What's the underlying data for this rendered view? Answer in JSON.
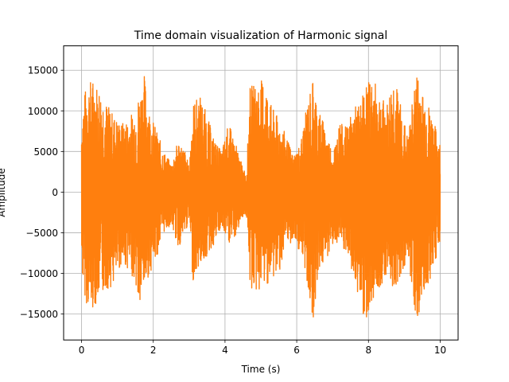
{
  "chart_data": {
    "type": "line",
    "title": "Time domain visualization of Harmonic signal",
    "xlabel": "Time (s)",
    "ylabel": "Amplitude",
    "xlim": [
      -0.5,
      10.5
    ],
    "ylim": [
      -18200,
      18000
    ],
    "grid": true,
    "xticks": [
      0,
      2,
      4,
      6,
      8,
      10
    ],
    "xtick_labels": [
      "0",
      "2",
      "4",
      "6",
      "8",
      "10"
    ],
    "yticks": [
      -15000,
      -10000,
      -5000,
      0,
      5000,
      10000,
      15000
    ],
    "ytick_labels": [
      "−15000",
      "−10000",
      "−5000",
      "0",
      "5000",
      "10000",
      "15000"
    ],
    "series": [
      {
        "color": "#ff7f0e",
        "envelope": {
          "t": [
            0.0,
            0.05,
            0.15,
            0.3,
            0.5,
            0.7,
            0.9,
            1.1,
            1.3,
            1.5,
            1.6,
            1.75,
            1.9,
            2.1,
            2.3,
            2.5,
            2.7,
            2.9,
            3.0,
            3.1,
            3.3,
            3.5,
            3.7,
            3.9,
            4.1,
            4.3,
            4.5,
            4.6,
            4.7,
            4.9,
            5.1,
            5.3,
            5.5,
            5.7,
            5.9,
            6.1,
            6.3,
            6.45,
            6.6,
            6.8,
            7.0,
            7.2,
            7.4,
            7.6,
            7.8,
            7.9,
            8.1,
            8.3,
            8.5,
            8.7,
            8.9,
            9.1,
            9.3,
            9.4,
            9.5,
            9.7,
            9.9,
            10.0
          ],
          "upper": [
            9000,
            11500,
            13500,
            14000,
            13000,
            11000,
            9500,
            8500,
            9000,
            10500,
            12000,
            14500,
            10000,
            7500,
            5000,
            3500,
            6500,
            5000,
            3000,
            11000,
            12000,
            9500,
            6500,
            5000,
            8500,
            6000,
            3000,
            2500,
            13000,
            13500,
            14000,
            10500,
            9000,
            7000,
            4500,
            6000,
            11000,
            14000,
            10500,
            8000,
            5000,
            8500,
            8000,
            10500,
            11000,
            13500,
            14000,
            12500,
            10500,
            14500,
            11000,
            6500,
            14000,
            15000,
            12500,
            10500,
            7500,
            6000
          ],
          "lower": [
            -9000,
            -12000,
            -14000,
            -14500,
            -13000,
            -12000,
            -11500,
            -9000,
            -9500,
            -11000,
            -15000,
            -12000,
            -10000,
            -8000,
            -5000,
            -4000,
            -7000,
            -5000,
            -3500,
            -11000,
            -9000,
            -8000,
            -6500,
            -4500,
            -6500,
            -5500,
            -3000,
            -3000,
            -12000,
            -12500,
            -11500,
            -11000,
            -10000,
            -7000,
            -6000,
            -7500,
            -11500,
            -16000,
            -10000,
            -8500,
            -6500,
            -6500,
            -8000,
            -11000,
            -14000,
            -16000,
            -13500,
            -12000,
            -10000,
            -12000,
            -10500,
            -8000,
            -15000,
            -16500,
            -13000,
            -11000,
            -8000,
            -6000
          ]
        }
      }
    ]
  }
}
